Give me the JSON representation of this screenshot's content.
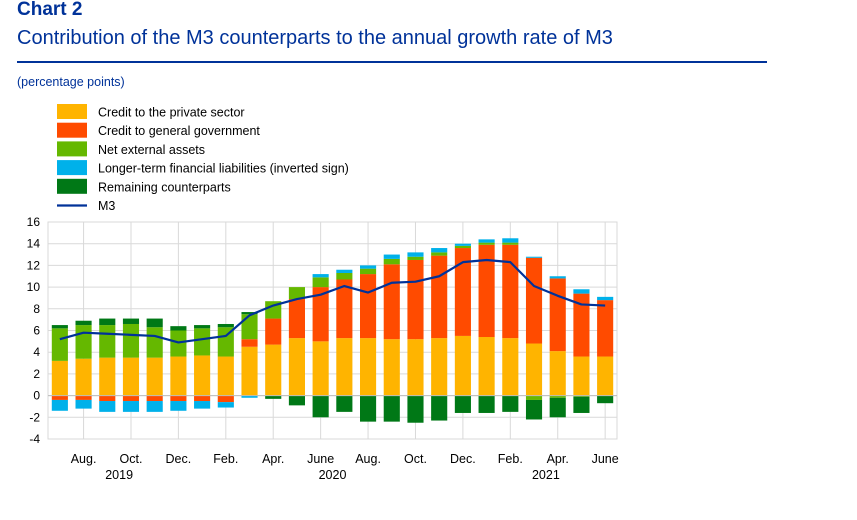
{
  "header": {
    "chart_number": "Chart 2",
    "title": "Contribution of the M3 counterparts to the annual growth rate of M3",
    "unit_note": "(percentage points)"
  },
  "colors": {
    "credit_private": "#FFB400",
    "credit_government": "#FF4B00",
    "net_external": "#65B800",
    "longer_term": "#00B1EA",
    "remaining": "#007816",
    "m3": "#003299",
    "grid": "#d9d9d9"
  },
  "chart_data": {
    "type": "bar",
    "title": "Contribution of the M3 counterparts to the annual growth rate of M3",
    "ylabel": "(percentage points)",
    "ylim": [
      -4,
      16
    ],
    "yticks": [
      "16",
      "14",
      "12",
      "10",
      "8",
      "6",
      "4",
      "2",
      "0",
      "-2",
      "-4"
    ],
    "grid": true,
    "legend_position": "top-left",
    "x_tick_labels": [
      {
        "index": 1,
        "label": "Aug."
      },
      {
        "index": 3,
        "label": "Oct."
      },
      {
        "index": 5,
        "label": "Dec."
      },
      {
        "index": 7,
        "label": "Feb."
      },
      {
        "index": 9,
        "label": "Apr."
      },
      {
        "index": 11,
        "label": "June"
      },
      {
        "index": 13,
        "label": "Aug."
      },
      {
        "index": 15,
        "label": "Oct."
      },
      {
        "index": 17,
        "label": "Dec."
      },
      {
        "index": 19,
        "label": "Feb."
      },
      {
        "index": 21,
        "label": "Apr."
      },
      {
        "index": 23,
        "label": "June"
      }
    ],
    "year_labels": [
      {
        "index": 2.5,
        "label": "2019"
      },
      {
        "index": 11.5,
        "label": "2020"
      },
      {
        "index": 20.5,
        "label": "2021"
      }
    ],
    "categories": [
      "Jul 2019",
      "Aug 2019",
      "Sep 2019",
      "Oct 2019",
      "Nov 2019",
      "Dec 2019",
      "Jan 2020",
      "Feb 2020",
      "Mar 2020",
      "Apr 2020",
      "May 2020",
      "Jun 2020",
      "Jul 2020",
      "Aug 2020",
      "Sep 2020",
      "Oct 2020",
      "Nov 2020",
      "Dec 2020",
      "Jan 2021",
      "Feb 2021",
      "Mar 2021",
      "Apr 2021",
      "May 2021",
      "Jun 2021"
    ],
    "series": [
      {
        "name": "Credit to the private sector",
        "key": "credit_private",
        "kind": "bar",
        "values": [
          3.2,
          3.4,
          3.5,
          3.5,
          3.5,
          3.6,
          3.7,
          3.6,
          4.5,
          4.7,
          5.3,
          5.0,
          5.3,
          5.3,
          5.2,
          5.2,
          5.3,
          5.5,
          5.4,
          5.3,
          4.8,
          4.1,
          3.6,
          3.6
        ]
      },
      {
        "name": "Credit to general government",
        "key": "credit_government",
        "kind": "bar",
        "values": [
          -0.4,
          -0.4,
          -0.5,
          -0.5,
          -0.5,
          -0.5,
          -0.5,
          -0.6,
          0.7,
          2.4,
          3.6,
          5.0,
          5.4,
          5.9,
          6.9,
          7.3,
          7.6,
          8.1,
          8.5,
          8.6,
          7.9,
          6.7,
          5.8,
          5.2
        ]
      },
      {
        "name": "Net external assets",
        "key": "net_external",
        "kind": "bar",
        "values": [
          3.0,
          3.1,
          3.0,
          3.1,
          2.8,
          2.4,
          2.5,
          2.7,
          2.3,
          1.6,
          1.1,
          0.9,
          0.6,
          0.5,
          0.5,
          0.3,
          0.3,
          0.2,
          0.2,
          0.2,
          -0.4,
          -0.2,
          -0.1,
          0.0
        ]
      },
      {
        "name": "Longer-term financial liabilities (inverted sign)",
        "key": "longer_term",
        "kind": "bar",
        "values": [
          -1.0,
          -0.8,
          -1.0,
          -1.0,
          -1.0,
          -0.9,
          -0.7,
          -0.5,
          -0.2,
          0.0,
          0.0,
          0.3,
          0.3,
          0.3,
          0.4,
          0.4,
          0.4,
          0.2,
          0.3,
          0.4,
          0.1,
          0.2,
          0.4,
          0.3
        ]
      },
      {
        "name": "Remaining counterparts",
        "key": "remaining",
        "kind": "bar",
        "values": [
          0.3,
          0.4,
          0.6,
          0.5,
          0.8,
          0.4,
          0.3,
          0.3,
          0.2,
          -0.3,
          -0.9,
          -2.0,
          -1.5,
          -2.4,
          -2.4,
          -2.5,
          -2.3,
          -1.6,
          -1.6,
          -1.5,
          -1.8,
          -1.8,
          -1.5,
          -0.7
        ]
      },
      {
        "name": "M3",
        "key": "m3",
        "kind": "line",
        "values": [
          5.2,
          5.8,
          5.7,
          5.6,
          5.5,
          4.9,
          5.2,
          5.5,
          7.4,
          8.3,
          8.9,
          9.3,
          10.1,
          9.5,
          10.4,
          10.5,
          11.0,
          12.3,
          12.5,
          12.3,
          10.1,
          9.2,
          8.4,
          8.3
        ]
      }
    ]
  }
}
